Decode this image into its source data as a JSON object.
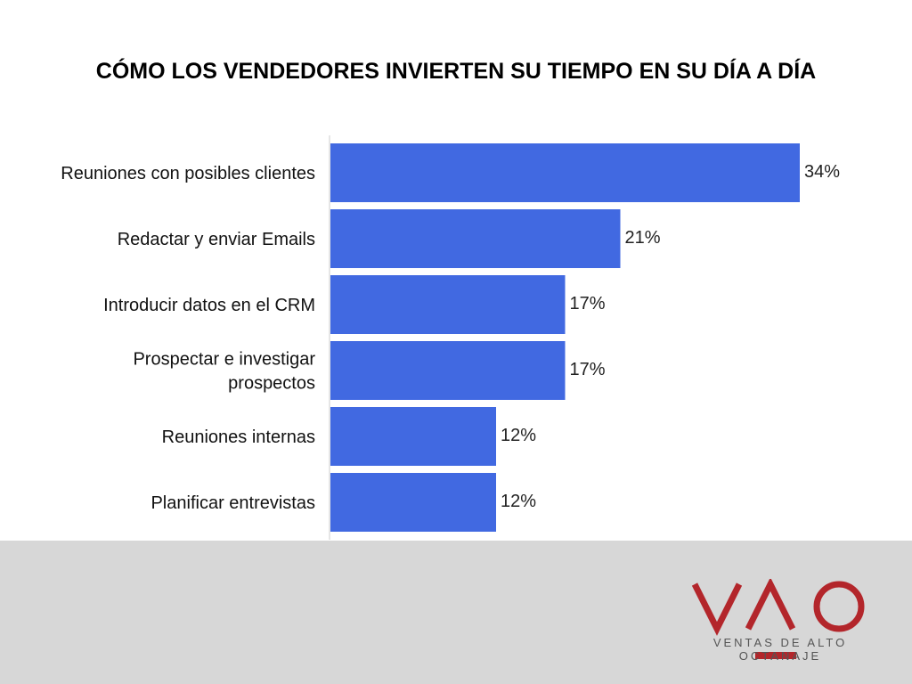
{
  "chart_data": {
    "type": "bar",
    "orientation": "horizontal",
    "title": "CÓMO LOS VENDEDORES INVIERTEN SU TIEMPO EN SU DÍA A DÍA",
    "categories": [
      [
        "Reuniones con posibles clientes"
      ],
      [
        "Redactar y enviar Emails"
      ],
      [
        "Introducir datos en  el CRM"
      ],
      [
        "Prospectar e investigar",
        "prospectos"
      ],
      [
        "Reuniones internas"
      ],
      [
        "Planificar entrevistas"
      ]
    ],
    "values": [
      34,
      21,
      17,
      17,
      12,
      12
    ],
    "value_labels": [
      "34%",
      "21%",
      "17%",
      "17%",
      "12%",
      "12%"
    ],
    "xlim": [
      0,
      40
    ],
    "grid": false,
    "bar_color": "#4169e1"
  },
  "footer": {
    "background": "#d7d7d7",
    "logo_text": "VAO",
    "logo_subtitle": "VENTAS DE ALTO OCTANAJE",
    "logo_color": "#b3262b"
  }
}
